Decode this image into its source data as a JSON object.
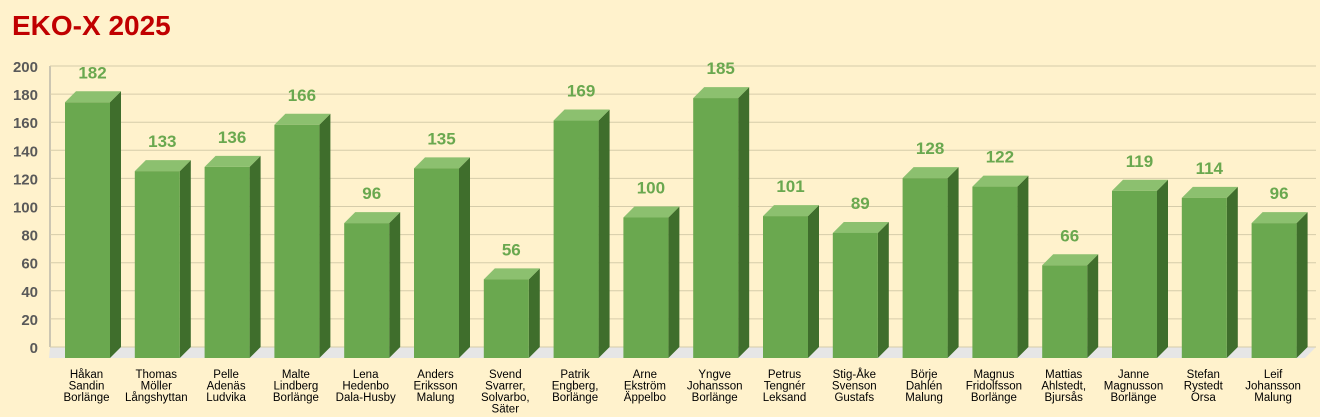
{
  "chart_data": {
    "type": "bar",
    "title": "EKO-X 2025",
    "categories": [
      [
        "Håkan",
        "Sandin",
        "Borlänge"
      ],
      [
        "Thomas",
        "Möller",
        "Långshyttan"
      ],
      [
        "Pelle",
        "Adenäs",
        "Ludvika"
      ],
      [
        "Malte",
        "Lindberg",
        "Borlänge"
      ],
      [
        "Lena",
        "Hedenbo",
        "Dala-Husby"
      ],
      [
        "Anders",
        "Eriksson",
        "Malung"
      ],
      [
        "Svend",
        "Svarrer,",
        "Solvarbo,",
        "Säter"
      ],
      [
        "Patrik",
        "Engberg,",
        "Borlänge"
      ],
      [
        "Arne",
        "Ekström",
        "Äppelbo"
      ],
      [
        "Yngve",
        "Johansson",
        "Borlänge"
      ],
      [
        "Petrus",
        "Tengnér",
        "Leksand"
      ],
      [
        "Stig-Åke",
        "Svenson",
        "Gustafs"
      ],
      [
        "Börje",
        "Dahlén",
        "Malung"
      ],
      [
        "Magnus",
        "Fridolfsson",
        "Borlänge"
      ],
      [
        "Mattias",
        "Ahlstedt,",
        "Bjursås"
      ],
      [
        "Janne",
        "Magnusson",
        "Borlänge"
      ],
      [
        "Stefan",
        "Rystedt",
        "Orsa"
      ],
      [
        "Leif",
        "Johansson",
        "Malung"
      ]
    ],
    "values": [
      182,
      133,
      136,
      166,
      96,
      135,
      56,
      169,
      100,
      185,
      101,
      89,
      128,
      122,
      66,
      119,
      114,
      96
    ],
    "ylim": [
      0,
      200
    ],
    "yticks": [
      0,
      20,
      40,
      60,
      80,
      100,
      120,
      140,
      160,
      180,
      200
    ],
    "grid": true,
    "three_d": true,
    "colors": {
      "bar": "#6aa84f",
      "bar_top": "#8cc06f",
      "bar_side": "#3f6e2c",
      "label": "#6aa84f",
      "title": "#c00000",
      "background": "#fff2cc"
    }
  }
}
